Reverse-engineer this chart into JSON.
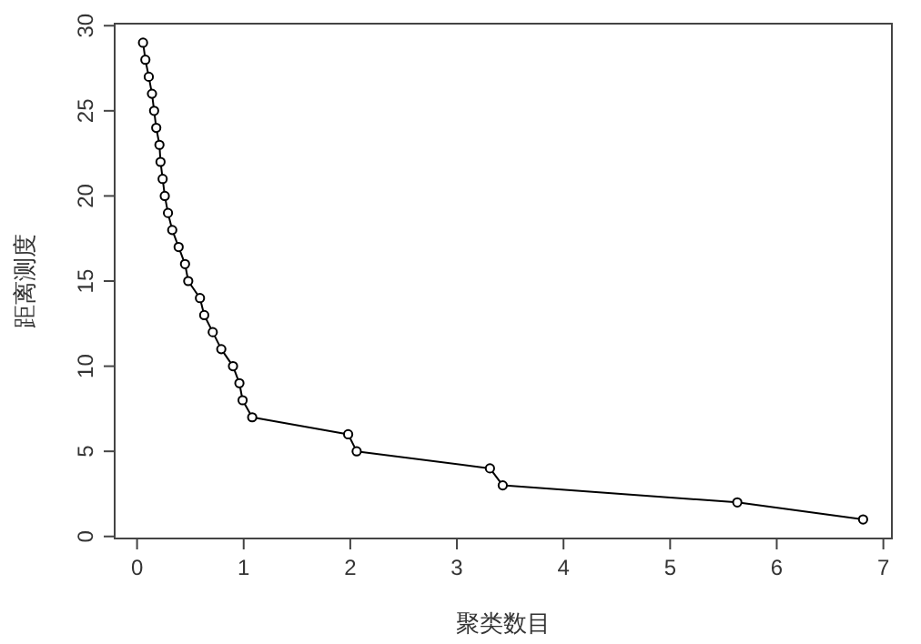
{
  "chart_data": {
    "type": "line",
    "xlabel": "聚类数目",
    "ylabel": "距离测度",
    "x": [
      0.056,
      0.078,
      0.11,
      0.14,
      0.16,
      0.18,
      0.21,
      0.22,
      0.24,
      0.26,
      0.29,
      0.33,
      0.39,
      0.45,
      0.48,
      0.59,
      0.63,
      0.71,
      0.79,
      0.9,
      0.96,
      0.99,
      1.08,
      1.98,
      2.06,
      3.31,
      3.43,
      5.63,
      6.81
    ],
    "series": [
      {
        "color": "#000000",
        "values": [
          29,
          28,
          27,
          26,
          25,
          24,
          23,
          22,
          21,
          20,
          19,
          18,
          17,
          16,
          15,
          14,
          13,
          12,
          11,
          10,
          9,
          8,
          7,
          6,
          5,
          4,
          3,
          2,
          1
        ]
      }
    ],
    "xlim": [
      -0.21,
      7.08
    ],
    "ylim": [
      -0.12,
      30.12
    ],
    "xticks": [
      0,
      1,
      2,
      3,
      4,
      5,
      6,
      7
    ],
    "yticks": [
      0,
      5,
      10,
      15,
      20,
      25,
      30
    ],
    "marker": "circle",
    "line_style": "solid",
    "grid": false
  }
}
